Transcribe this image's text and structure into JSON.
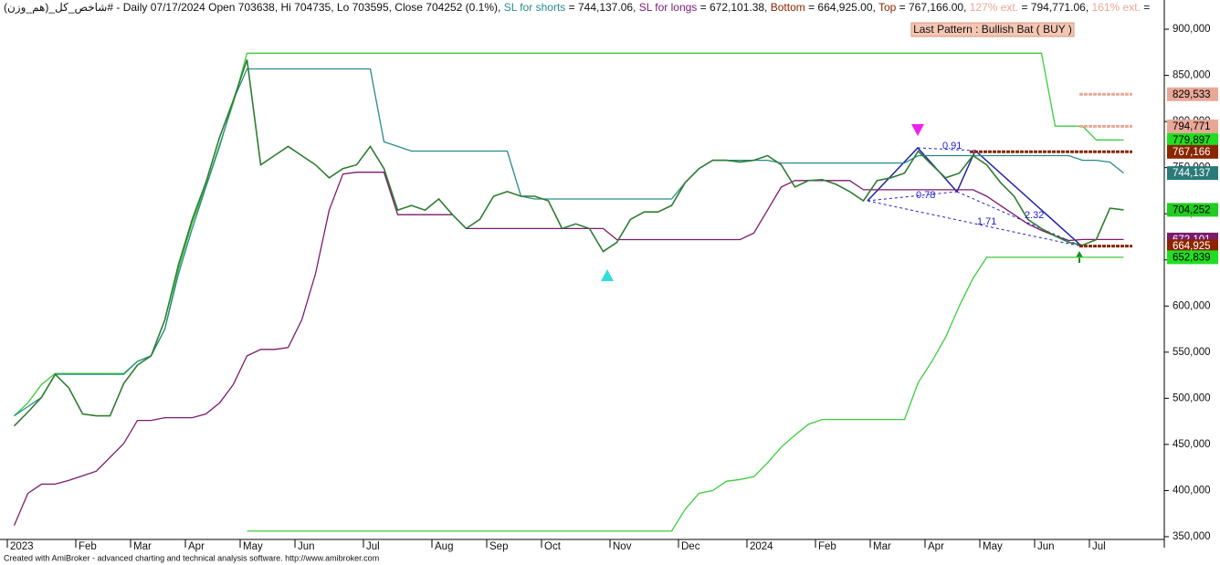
{
  "chart_data": {
    "type": "line",
    "header": [
      "شاخص_کل_(هم_وزن)# - Daily 07/17/2024 Open 703638, Hi 704735, Lo 703595, Close 704252 (0.1%),",
      "= 744,137.06,",
      "= 672,101.38,",
      "Bottom",
      "= 664,925.00,",
      "Top",
      "= 767,166.00,",
      "127% ext.",
      "= 794,771.06,",
      "161% ext.",
      "="
    ],
    "pattern": "Last Pattern : Bullish Bat ( BUY )",
    "footer": "Created with AmiBroker - advanced charting and technical analysis software. http://www.amibroker.com",
    "annotations": [
      "0.91",
      "0.78",
      "1.71",
      "2.32"
    ],
    "categories": [
      "2023",
      null,
      null,
      null,
      null,
      "Feb",
      null,
      null,
      null,
      "Mar",
      null,
      null,
      null,
      "Apr",
      null,
      null,
      null,
      "May",
      null,
      null,
      null,
      "Jun",
      null,
      null,
      null,
      null,
      "Jul",
      null,
      null,
      null,
      null,
      "Aug",
      null,
      null,
      null,
      "Sep",
      null,
      null,
      null,
      "Oct",
      null,
      null,
      null,
      null,
      "Nov",
      null,
      null,
      null,
      null,
      "Dec",
      null,
      null,
      null,
      null,
      "2024",
      null,
      null,
      null,
      null,
      "Feb",
      null,
      null,
      null,
      "Mar",
      null,
      null,
      null,
      "Apr",
      null,
      null,
      null,
      "May",
      null,
      null,
      null,
      "Jun",
      null,
      null,
      null,
      "Jul",
      null,
      null
    ],
    "series": [
      {
        "name": "Close",
        "color": "#2e7d32",
        "values": [
          470000,
          485000,
          501000,
          526000,
          511000,
          483000,
          481000,
          481000,
          516000,
          536000,
          546000,
          585000,
          645000,
          694000,
          734000,
          783000,
          823000,
          867000,
          753000,
          763000,
          773000,
          763000,
          753000,
          739000,
          749000,
          753000,
          773000,
          749000,
          704000,
          709000,
          704000,
          716000,
          699000,
          684000,
          694000,
          719000,
          724000,
          719000,
          719000,
          714000,
          684000,
          689000,
          684000,
          659000,
          669000,
          694000,
          702000,
          702000,
          709000,
          734000,
          749000,
          758000,
          758000,
          756000,
          758000,
          763000,
          753000,
          729000,
          736000,
          737000,
          732000,
          724000,
          714000,
          736000,
          739000,
          744000,
          768000,
          753000,
          739000,
          744000,
          763000,
          753000,
          734000,
          719000,
          694000,
          684000,
          676000,
          669000,
          666000,
          672000,
          706000,
          704252
        ]
      },
      {
        "name": "SL for shorts",
        "color": "#2a8a8a",
        "values": [
          481000,
          491000,
          501000,
          526000,
          526000,
          526000,
          526000,
          526000,
          526000,
          540000,
          546000,
          575000,
          635000,
          684000,
          729000,
          773000,
          823000,
          857000,
          857000,
          857000,
          857000,
          857000,
          857000,
          857000,
          857000,
          857000,
          857000,
          778000,
          773000,
          768000,
          768000,
          768000,
          768000,
          768000,
          768000,
          768000,
          768000,
          719000,
          716000,
          716000,
          716000,
          716000,
          716000,
          716000,
          716000,
          716000,
          716000,
          716000,
          716000,
          734000,
          749000,
          758000,
          758000,
          758000,
          758000,
          758000,
          755000,
          755000,
          755000,
          755000,
          755000,
          755000,
          755000,
          755000,
          755000,
          755000,
          763000,
          763000,
          763000,
          763000,
          763000,
          763000,
          763000,
          763000,
          763000,
          763000,
          763000,
          763000,
          758000,
          758000,
          756000,
          744137
        ]
      },
      {
        "name": "SL for longs",
        "color": "#7b1a6e",
        "values": [
          362000,
          397000,
          407000,
          407000,
          411000,
          416000,
          421000,
          436000,
          451000,
          476000,
          476000,
          479000,
          479000,
          479000,
          483000,
          495000,
          515000,
          546000,
          553000,
          553000,
          555000,
          585000,
          635000,
          704000,
          743000,
          745000,
          745000,
          745000,
          699000,
          699000,
          699000,
          699000,
          699000,
          684000,
          684000,
          684000,
          684000,
          684000,
          684000,
          684000,
          684000,
          684000,
          684000,
          684000,
          672000,
          672000,
          672000,
          672000,
          672000,
          672000,
          672000,
          672000,
          672000,
          672000,
          679000,
          704000,
          729000,
          736000,
          736000,
          736000,
          736000,
          736000,
          726000,
          726000,
          726000,
          726000,
          726000,
          726000,
          726000,
          726000,
          726000,
          719000,
          709000,
          699000,
          689000,
          682000,
          676000,
          671000,
          672101,
          672101,
          672101,
          672101
        ]
      },
      {
        "color": "#3ccc3c",
        "values": [
          null,
          null,
          null,
          null,
          null,
          null,
          null,
          null,
          null,
          null,
          null,
          null,
          null,
          null,
          null,
          null,
          null,
          356000,
          356000,
          356000,
          356000,
          356000,
          356000,
          356000,
          356000,
          356000,
          356000,
          356000,
          356000,
          356000,
          356000,
          356000,
          356000,
          356000,
          356000,
          356000,
          356000,
          356000,
          356000,
          356000,
          356000,
          356000,
          356000,
          356000,
          356000,
          356000,
          356000,
          356000,
          356000,
          380000,
          397000,
          400000,
          410000,
          412000,
          415000,
          430000,
          447000,
          460000,
          472000,
          477000,
          477000,
          477000,
          477000,
          477000,
          477000,
          477000,
          517000,
          540000,
          566000,
          600000,
          630000,
          652839,
          652839,
          652839,
          652839,
          652839,
          652839,
          652839,
          652839,
          652839,
          652839,
          652839
        ]
      },
      {
        "color": "#3ccc3c",
        "values": [
          481000,
          495000,
          515000,
          527000,
          527000,
          527000,
          527000,
          527000,
          527000,
          540000,
          546000,
          575000,
          640000,
          690000,
          730000,
          775000,
          820000,
          874000,
          874000,
          874000,
          874000,
          874000,
          874000,
          874000,
          874000,
          874000,
          874000,
          874000,
          874000,
          874000,
          874000,
          874000,
          874000,
          874000,
          874000,
          874000,
          874000,
          874000,
          874000,
          874000,
          874000,
          874000,
          874000,
          874000,
          874000,
          874000,
          874000,
          874000,
          874000,
          874000,
          874000,
          874000,
          874000,
          874000,
          874000,
          874000,
          874000,
          874000,
          874000,
          874000,
          874000,
          874000,
          874000,
          874000,
          874000,
          874000,
          874000,
          874000,
          874000,
          874000,
          874000,
          874000,
          874000,
          874000,
          874000,
          874000,
          795000,
          795000,
          795000,
          780000,
          780000,
          779897
        ]
      }
    ],
    "price_tags": [
      {
        "value": 829533,
        "label": "829,533",
        "color": "#e8a898"
      },
      {
        "value": 794771,
        "label": "794,771",
        "color": "#e8a898"
      },
      {
        "value": 779897,
        "label": "779,897",
        "color": "#22dd22"
      },
      {
        "value": 767166,
        "label": "767,166",
        "color": "#8b2500"
      },
      {
        "value": 744137,
        "label": "744,137",
        "color": "#2a7a7a"
      },
      {
        "value": 704252,
        "label": "704,252",
        "color": "#22cc22"
      },
      {
        "value": 672101,
        "label": "672,101",
        "color": "#7b1a6e"
      },
      {
        "value": 664925,
        "label": "664,925",
        "color": "#8b2500"
      },
      {
        "value": 652839,
        "label": "652,839",
        "color": "#22dd22"
      }
    ],
    "ylim": [
      348000,
      931700
    ],
    "yticks": [
      {
        "value": 350000,
        "label": "350,000"
      },
      {
        "value": 400000,
        "label": "400,000"
      },
      {
        "value": 450000,
        "label": "450,000"
      },
      {
        "value": 500000,
        "label": "500,000"
      },
      {
        "value": 550000,
        "label": "550,000"
      },
      {
        "value": 600000,
        "label": "600,000"
      },
      {
        "value": 650000,
        "label": "650,000"
      },
      {
        "value": 700000,
        "label": "700,000"
      },
      {
        "value": 750000,
        "label": "750,000"
      },
      {
        "value": 800000,
        "label": "800,000"
      },
      {
        "value": 850000,
        "label": "850,000"
      },
      {
        "value": 900000,
        "label": "900,000"
      }
    ]
  }
}
